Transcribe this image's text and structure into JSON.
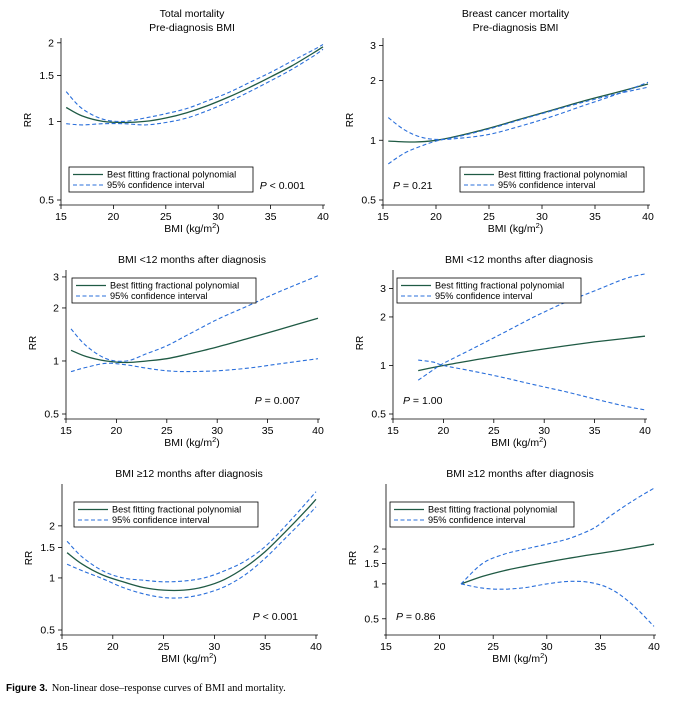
{
  "figure": {
    "caption_label": "Figure 3.",
    "caption_text": "Non-linear dose–response curves of BMI and mortality."
  },
  "colors": {
    "fit_line": "#1f5a44",
    "ci_line": "#2a6fdb",
    "axis": "#000000"
  },
  "chart_data": [
    {
      "type": "line",
      "title": "Total mortality",
      "subtitle": "Pre-diagnosis BMI",
      "xlabel": "BMI (kg/m²)",
      "ylabel": "RR",
      "xlim": [
        15,
        40
      ],
      "ylim": [
        0.5,
        2.05
      ],
      "yscale": "log",
      "xticks": [
        15,
        20,
        25,
        30,
        35,
        40
      ],
      "yticks": [
        0.5,
        1,
        1.5,
        2
      ],
      "ytick_labels": [
        "0.5",
        "1",
        "1.5",
        "2"
      ],
      "legend": {
        "placement": "bottom-left",
        "entries": [
          "Best fitting fractional polynomial",
          "95% confidence interval"
        ]
      },
      "p_value": "P < 0.001",
      "p_placement": "bottom-right",
      "series": [
        {
          "name": "Best fitting fractional polynomial",
          "style": "solid",
          "x": [
            15.5,
            17,
            19,
            21,
            23,
            25,
            27,
            29,
            31,
            33,
            35,
            37,
            39,
            40
          ],
          "y": [
            1.13,
            1.05,
            1.0,
            0.99,
            1.0,
            1.03,
            1.08,
            1.15,
            1.24,
            1.35,
            1.48,
            1.63,
            1.82,
            1.93
          ]
        },
        {
          "name": "95% confidence interval",
          "style": "dashed",
          "x": [
            15.5,
            17,
            19,
            21,
            23,
            25,
            27,
            29,
            31,
            33,
            35,
            37,
            39,
            40
          ],
          "y": [
            1.3,
            1.12,
            1.02,
            1.0,
            1.03,
            1.07,
            1.12,
            1.2,
            1.29,
            1.41,
            1.54,
            1.7,
            1.87,
            1.97
          ]
        },
        {
          "name": "95% confidence interval",
          "style": "dashed",
          "x": [
            15.5,
            17,
            19,
            21,
            23,
            25,
            27,
            29,
            31,
            33,
            35,
            37,
            39,
            40
          ],
          "y": [
            0.98,
            0.97,
            0.98,
            0.98,
            0.97,
            0.99,
            1.03,
            1.1,
            1.19,
            1.3,
            1.43,
            1.58,
            1.77,
            1.89
          ]
        }
      ]
    },
    {
      "type": "line",
      "title": "Breast cancer mortality",
      "subtitle": "Pre-diagnosis BMI",
      "xlabel": "BMI (kg/m²)",
      "ylabel": "RR",
      "xlim": [
        15,
        40
      ],
      "ylim": [
        0.5,
        3.2
      ],
      "yscale": "log",
      "xticks": [
        15,
        20,
        25,
        30,
        35,
        40
      ],
      "yticks": [
        0.5,
        1,
        2,
        3
      ],
      "ytick_labels": [
        "0.5",
        "1",
        "2",
        "3"
      ],
      "legend": {
        "placement": "bottom-right",
        "entries": [
          "Best fitting fractional polynomial",
          "95% confidence interval"
        ]
      },
      "p_value": "P = 0.21",
      "p_placement": "bottom-left",
      "series": [
        {
          "name": "Best fitting fractional polynomial",
          "style": "solid",
          "x": [
            15.5,
            18,
            20,
            22,
            25,
            28,
            31,
            34,
            37,
            40
          ],
          "y": [
            0.99,
            0.98,
            1.0,
            1.05,
            1.15,
            1.28,
            1.42,
            1.58,
            1.74,
            1.92
          ]
        },
        {
          "name": "95% confidence interval",
          "style": "dashed",
          "x": [
            15.5,
            17,
            18.5,
            20,
            22,
            25,
            28,
            31,
            34,
            37,
            40
          ],
          "y": [
            1.3,
            1.13,
            1.04,
            1.01,
            1.02,
            1.07,
            1.18,
            1.32,
            1.5,
            1.7,
            1.96
          ]
        },
        {
          "name": "95% confidence interval",
          "style": "dashed",
          "x": [
            15.5,
            17,
            18.5,
            20,
            22,
            25,
            28,
            31,
            34,
            37,
            40
          ],
          "y": [
            0.76,
            0.86,
            0.93,
            0.99,
            1.04,
            1.14,
            1.27,
            1.41,
            1.56,
            1.71,
            1.85
          ]
        }
      ]
    },
    {
      "type": "line",
      "title": "BMI <12 months after diagnosis",
      "subtitle": "",
      "xlabel": "BMI (kg/m²)",
      "ylabel": "RR",
      "xlim": [
        15,
        40
      ],
      "ylim": [
        0.5,
        3.2
      ],
      "yscale": "log",
      "xticks": [
        15,
        20,
        25,
        30,
        35,
        40
      ],
      "yticks": [
        0.5,
        1,
        2,
        3
      ],
      "ytick_labels": [
        "0.5",
        "1",
        "2",
        "3"
      ],
      "legend": {
        "placement": "top-left",
        "entries": [
          "Best fitting fractional polynomial",
          "95% confidence interval"
        ]
      },
      "p_value": "P = 0.007",
      "p_placement": "bottom-right",
      "series": [
        {
          "name": "Best fitting fractional polynomial",
          "style": "solid",
          "x": [
            15.5,
            17,
            19,
            21,
            23,
            25,
            27,
            30,
            33,
            36,
            40
          ],
          "y": [
            1.15,
            1.06,
            1.0,
            0.98,
            1.0,
            1.03,
            1.09,
            1.2,
            1.34,
            1.5,
            1.75
          ]
        },
        {
          "name": "95% confidence interval",
          "style": "dashed",
          "x": [
            15.5,
            17,
            19,
            21,
            23,
            25,
            27,
            30,
            33,
            36,
            40
          ],
          "y": [
            1.52,
            1.22,
            1.03,
            1.0,
            1.1,
            1.22,
            1.4,
            1.72,
            2.05,
            2.45,
            3.05
          ]
        },
        {
          "name": "95% confidence interval",
          "style": "dashed",
          "x": [
            15.5,
            17,
            19,
            21,
            23,
            25,
            27,
            30,
            33,
            36,
            40
          ],
          "y": [
            0.87,
            0.92,
            0.97,
            0.95,
            0.91,
            0.88,
            0.87,
            0.88,
            0.91,
            0.96,
            1.03
          ]
        }
      ]
    },
    {
      "type": "line",
      "title": "BMI <12 months after diagnosis",
      "subtitle": "",
      "xlabel": "BMI (kg/m²)",
      "ylabel": "RR",
      "xlim": [
        15,
        40
      ],
      "ylim": [
        0.5,
        3.8
      ],
      "yscale": "log",
      "xticks": [
        15,
        20,
        25,
        30,
        35,
        40
      ],
      "yticks": [
        0.5,
        1,
        2,
        3
      ],
      "ytick_labels": [
        "0.5",
        "1",
        "2",
        "3"
      ],
      "legend": {
        "placement": "top-left",
        "entries": [
          "Best fitting fractional polynomial",
          "95% confidence interval"
        ]
      },
      "p_value": "P = 1.00",
      "p_placement": "bottom-left",
      "series": [
        {
          "name": "Best fitting fractional polynomial",
          "style": "solid",
          "x": [
            17.5,
            20,
            23,
            26,
            29,
            32,
            35,
            38,
            40
          ],
          "y": [
            0.93,
            1.0,
            1.08,
            1.16,
            1.24,
            1.32,
            1.4,
            1.47,
            1.52
          ]
        },
        {
          "name": "95% confidence interval",
          "style": "dashed",
          "x": [
            17.5,
            19,
            20,
            23,
            26,
            29,
            32,
            35,
            38,
            40
          ],
          "y": [
            0.81,
            0.94,
            1.03,
            1.28,
            1.6,
            2.0,
            2.45,
            2.9,
            3.45,
            3.7
          ]
        },
        {
          "name": "95% confidence interval",
          "style": "dashed",
          "x": [
            17.5,
            19,
            20,
            23,
            26,
            29,
            32,
            35,
            38,
            40
          ],
          "y": [
            1.08,
            1.05,
            1.0,
            0.92,
            0.84,
            0.76,
            0.69,
            0.62,
            0.56,
            0.53
          ]
        }
      ]
    },
    {
      "type": "line",
      "title": "BMI ≥12 months after diagnosis",
      "subtitle": "",
      "xlabel": "BMI (kg/m²)",
      "ylabel": "RR",
      "xlim": [
        15,
        40
      ],
      "ylim": [
        0.5,
        3.4
      ],
      "yscale": "log",
      "xticks": [
        15,
        20,
        25,
        30,
        35,
        40
      ],
      "yticks": [
        0.5,
        1,
        1.5,
        2
      ],
      "ytick_labels": [
        "0.5",
        "1",
        "1.5",
        "2"
      ],
      "legend": {
        "placement": "top-right",
        "entries": [
          "Best fitting fractional polynomial",
          "95% confidence interval"
        ]
      },
      "p_value": "P < 0.001",
      "p_placement": "bottom-right",
      "series": [
        {
          "name": "Best fitting fractional polynomial",
          "style": "solid",
          "x": [
            15.5,
            17,
            19,
            21,
            23,
            25,
            27,
            29,
            31,
            33,
            35,
            37,
            39,
            40
          ],
          "y": [
            1.4,
            1.2,
            1.04,
            0.95,
            0.88,
            0.85,
            0.85,
            0.89,
            0.98,
            1.15,
            1.42,
            1.85,
            2.45,
            2.85
          ]
        },
        {
          "name": "95% confidence interval",
          "style": "dashed",
          "x": [
            15.5,
            17,
            19,
            21,
            23,
            25,
            27,
            29,
            31,
            33,
            35,
            37,
            39,
            40
          ],
          "y": [
            1.63,
            1.32,
            1.1,
            1.0,
            0.97,
            0.95,
            0.96,
            1.0,
            1.1,
            1.25,
            1.52,
            2.0,
            2.7,
            3.15
          ]
        },
        {
          "name": "95% confidence interval",
          "style": "dashed",
          "x": [
            15.5,
            17,
            19,
            21,
            23,
            25,
            27,
            29,
            31,
            33,
            35,
            37,
            39,
            40
          ],
          "y": [
            1.2,
            1.1,
            0.99,
            0.88,
            0.81,
            0.77,
            0.77,
            0.81,
            0.89,
            1.04,
            1.3,
            1.7,
            2.23,
            2.58
          ]
        }
      ]
    },
    {
      "type": "line",
      "title": "BMI ≥12 months after diagnosis",
      "subtitle": "",
      "xlabel": "BMI (kg/m²)",
      "ylabel": "RR",
      "xlim": [
        15,
        40
      ],
      "ylim": [
        0.4,
        7
      ],
      "yscale": "log",
      "xticks": [
        15,
        20,
        25,
        30,
        35,
        40
      ],
      "yticks": [
        0.5,
        1,
        1.5,
        2
      ],
      "ytick_labels": [
        "0.5",
        "1",
        "1.5",
        "2"
      ],
      "legend": {
        "placement": "top-right",
        "entries": [
          "Best fitting fractional polynomial",
          "95% confidence interval"
        ]
      },
      "p_value": "P = 0.86",
      "p_placement": "bottom-left",
      "series": [
        {
          "name": "Best fitting fractional polynomial",
          "style": "solid",
          "x": [
            22,
            24,
            26,
            28,
            30,
            32,
            34,
            36,
            38,
            40
          ],
          "y": [
            1.0,
            1.16,
            1.3,
            1.42,
            1.54,
            1.66,
            1.78,
            1.9,
            2.04,
            2.2
          ]
        },
        {
          "name": "95% confidence interval",
          "style": "dashed",
          "x": [
            22,
            24,
            26,
            28,
            30,
            32,
            34,
            35,
            36,
            38,
            40
          ],
          "y": [
            1.0,
            1.5,
            1.8,
            2.0,
            2.2,
            2.45,
            2.9,
            3.3,
            3.9,
            5.2,
            6.7
          ]
        },
        {
          "name": "95% confidence interval",
          "style": "dashed",
          "x": [
            22,
            24,
            26,
            28,
            30,
            32,
            34,
            36,
            38,
            40
          ],
          "y": [
            1.0,
            0.92,
            0.9,
            0.93,
            1.0,
            1.05,
            1.03,
            0.9,
            0.66,
            0.43
          ]
        }
      ]
    }
  ]
}
